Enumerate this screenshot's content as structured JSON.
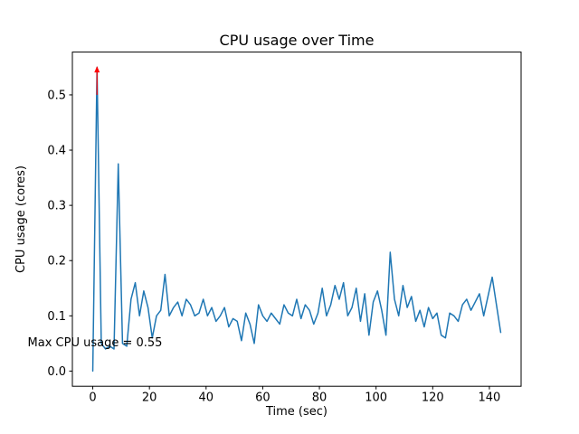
{
  "chart_data": {
    "type": "line",
    "title": "CPU usage over Time",
    "xlabel": "Time (sec)",
    "ylabel": "CPU usage (cores)",
    "xlim": [
      -7.2,
      151.2
    ],
    "ylim": [
      -0.0275,
      0.5775
    ],
    "xticks": [
      0,
      20,
      40,
      60,
      80,
      100,
      120,
      140
    ],
    "xtick_labels": [
      "0",
      "20",
      "40",
      "60",
      "80",
      "100",
      "120",
      "140"
    ],
    "yticks": [
      0.0,
      0.1,
      0.2,
      0.3,
      0.4,
      0.5
    ],
    "ytick_labels": [
      "0.0",
      "0.1",
      "0.2",
      "0.3",
      "0.4",
      "0.5"
    ],
    "grid": false,
    "legend": null,
    "line_color": "#1f77b4",
    "x": [
      0,
      1.5,
      3,
      4.5,
      6,
      7.5,
      9,
      10.5,
      12,
      13.5,
      15,
      16.5,
      18,
      19.5,
      21,
      22.5,
      24,
      25.5,
      27,
      28.5,
      30,
      31.5,
      33,
      34.5,
      36,
      37.5,
      39,
      40.5,
      42,
      43.5,
      45,
      46.5,
      48,
      49.5,
      51,
      52.5,
      54,
      55.5,
      57,
      58.5,
      60,
      61.5,
      63,
      64.5,
      66,
      67.5,
      69,
      70.5,
      72,
      73.5,
      75,
      76.5,
      78,
      79.5,
      81,
      82.5,
      84,
      85.5,
      87,
      88.5,
      90,
      91.5,
      93,
      94.5,
      96,
      97.5,
      99,
      100.5,
      102,
      103.5,
      105,
      106.5,
      108,
      109.5,
      111,
      112.5,
      114,
      115.5,
      117,
      118.5,
      120,
      121.5,
      123,
      124.5,
      126,
      127.5,
      129,
      130.5,
      132,
      133.5,
      135,
      136.5,
      138,
      139.5,
      141,
      142.5,
      144
    ],
    "y": [
      0.0,
      0.55,
      0.05,
      0.04,
      0.045,
      0.04,
      0.375,
      0.05,
      0.045,
      0.13,
      0.16,
      0.1,
      0.145,
      0.115,
      0.06,
      0.1,
      0.11,
      0.175,
      0.1,
      0.115,
      0.125,
      0.1,
      0.13,
      0.12,
      0.1,
      0.105,
      0.13,
      0.1,
      0.115,
      0.09,
      0.1,
      0.115,
      0.08,
      0.095,
      0.09,
      0.055,
      0.105,
      0.085,
      0.05,
      0.12,
      0.1,
      0.09,
      0.105,
      0.095,
      0.085,
      0.12,
      0.105,
      0.1,
      0.13,
      0.095,
      0.12,
      0.11,
      0.085,
      0.105,
      0.15,
      0.1,
      0.12,
      0.155,
      0.13,
      0.16,
      0.1,
      0.115,
      0.15,
      0.09,
      0.14,
      0.065,
      0.125,
      0.145,
      0.11,
      0.065,
      0.215,
      0.13,
      0.1,
      0.155,
      0.115,
      0.135,
      0.09,
      0.11,
      0.08,
      0.115,
      0.095,
      0.105,
      0.065,
      0.06,
      0.105,
      0.1,
      0.09,
      0.12,
      0.13,
      0.11,
      0.125,
      0.14,
      0.1,
      0.135,
      0.17,
      0.12,
      0.07
    ],
    "annotation": {
      "text": "Max CPU usage = 0.55",
      "color": "#ff0000",
      "text_x": -23,
      "text_y": 0.045,
      "arrow_x": 1.5,
      "arrow_tail_y": 0.5,
      "arrow_tip_y": 0.552
    }
  }
}
